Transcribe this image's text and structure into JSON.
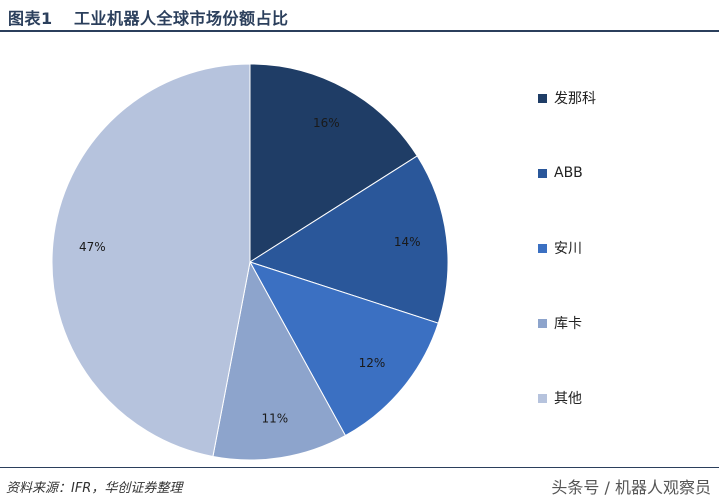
{
  "header": {
    "fig_label": "图表1",
    "title": "工业机器人全球市场份额占比"
  },
  "chart_data": {
    "type": "pie",
    "title": "工业机器人全球市场份额占比",
    "categories": [
      "发那科",
      "ABB",
      "安川",
      "库卡",
      "其他"
    ],
    "values": [
      16,
      14,
      12,
      11,
      47
    ],
    "value_labels": [
      "16%",
      "14%",
      "12%",
      "11%",
      "47%"
    ],
    "colors": [
      "#1f3d66",
      "#2a579a",
      "#3b70c2",
      "#8da4cc",
      "#b6c3dd"
    ],
    "start_angle_deg": 0,
    "direction": "clockwise",
    "legend_position": "right"
  },
  "footer": {
    "source": "资料来源：IFR，华创证券整理",
    "watermark": "头条号 / 机器人观察员"
  }
}
